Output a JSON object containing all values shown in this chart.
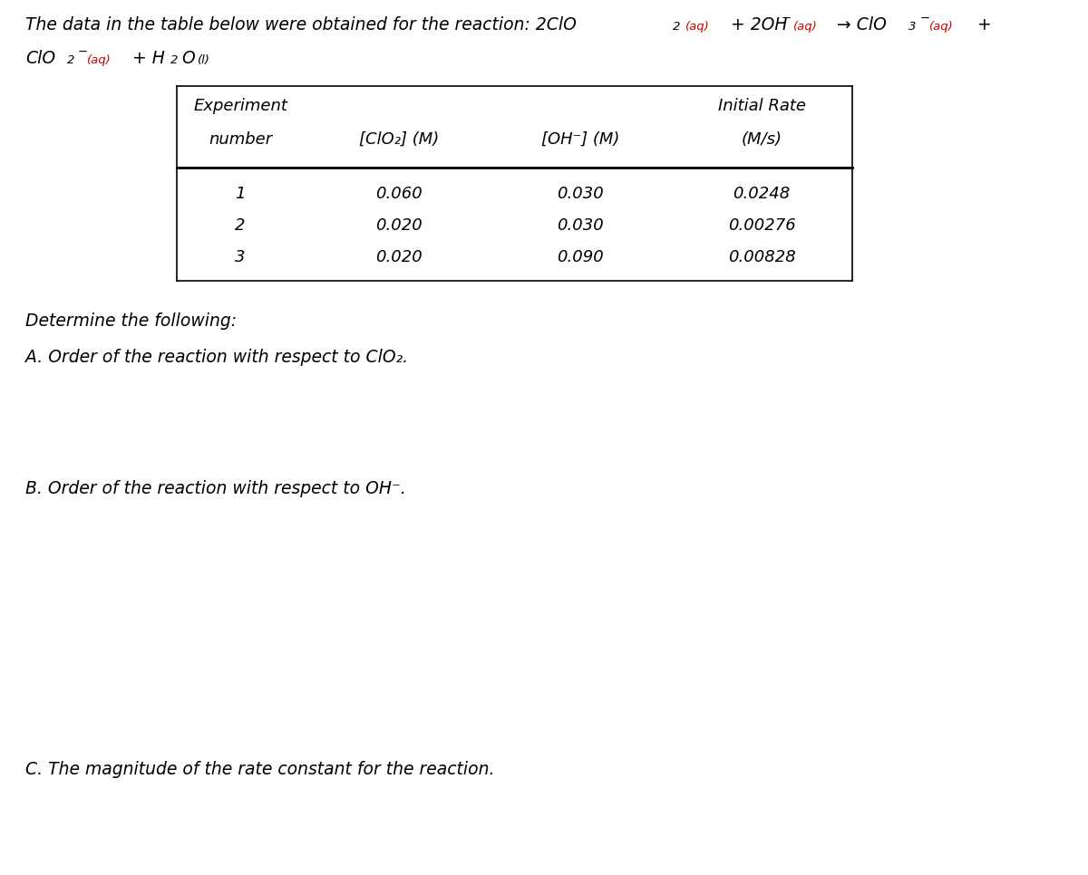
{
  "background_color": "#ffffff",
  "text_color": "#000000",
  "red_color": "#cc0000",
  "table_data": [
    [
      "1",
      "0.060",
      "0.030",
      "0.0248"
    ],
    [
      "2",
      "0.020",
      "0.030",
      "0.00276"
    ],
    [
      "3",
      "0.020",
      "0.090",
      "0.00828"
    ]
  ],
  "fig_width": 12.0,
  "fig_height": 9.66,
  "dpi": 100
}
